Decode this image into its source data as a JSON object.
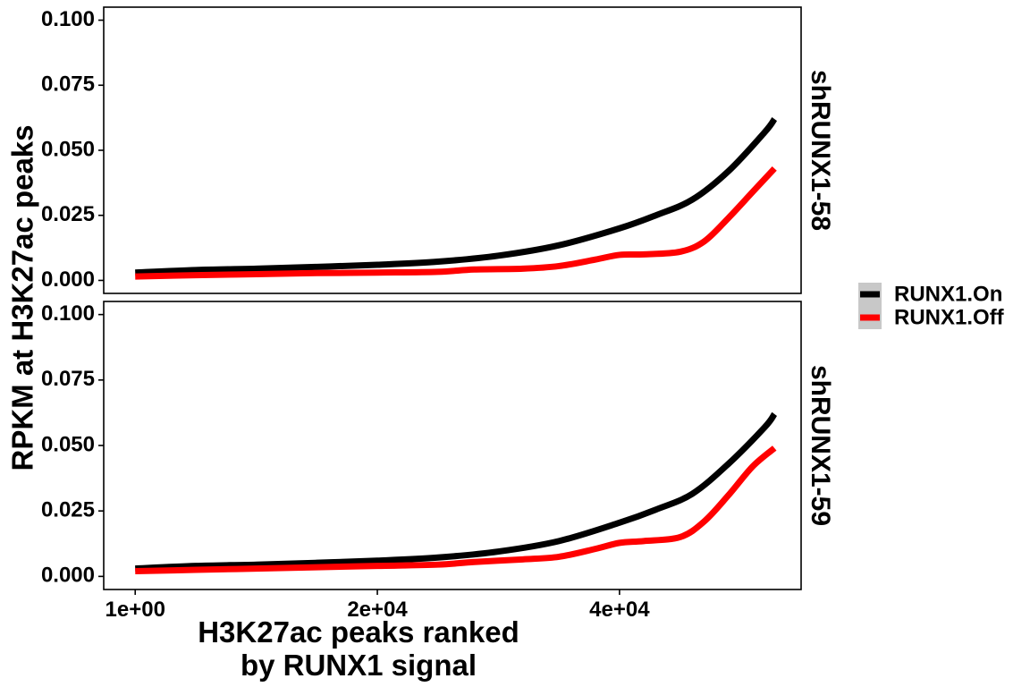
{
  "chart_data": {
    "type": "line",
    "xlabel": "H3K27ac peaks ranked\nby RUNX1 signal",
    "ylabel": "RPKM at H3K27ac peaks",
    "x_ticks": [
      1,
      20000,
      40000
    ],
    "x_tick_labels": [
      "1e+00",
      "2e+04",
      "4e+04"
    ],
    "y_ticks": [
      0,
      0.025,
      0.05,
      0.075,
      0.1
    ],
    "y_tick_labels": [
      "0.000",
      "0.025",
      "0.050",
      "0.075",
      "0.100"
    ],
    "xlim": [
      -2600,
      55000
    ],
    "ylim": [
      -0.005,
      0.105
    ],
    "grid": false,
    "legend": {
      "placement": "right",
      "entries": [
        {
          "label": "RUNX1.On",
          "color": "#000000"
        },
        {
          "label": "RUNX1.Off",
          "color": "#ff0000"
        }
      ]
    },
    "panels": [
      {
        "label": "shRUNX1-58",
        "series": [
          {
            "name": "RUNX1.On",
            "color": "#000000",
            "x": [
              1,
              5000,
              10000,
              15000,
              20000,
              25000,
              30000,
              35000,
              40000,
              43000,
              46000,
              49000,
              52000,
              52800
            ],
            "y": [
              0.003,
              0.004,
              0.0045,
              0.0052,
              0.006,
              0.0072,
              0.0095,
              0.0135,
              0.02,
              0.025,
              0.031,
              0.042,
              0.057,
              0.062
            ]
          },
          {
            "name": "RUNX1.Off",
            "color": "#ff0000",
            "x": [
              1,
              5000,
              10000,
              15000,
              20000,
              25000,
              28000,
              32000,
              35000,
              38000,
              40000,
              42000,
              45000,
              47000,
              49000,
              51000,
              52800
            ],
            "y": [
              0.0015,
              0.002,
              0.0024,
              0.0028,
              0.003,
              0.0033,
              0.0042,
              0.0045,
              0.0055,
              0.008,
              0.0098,
              0.01,
              0.011,
              0.015,
              0.024,
              0.034,
              0.043
            ]
          }
        ]
      },
      {
        "label": "shRUNX1-59",
        "series": [
          {
            "name": "RUNX1.On",
            "color": "#000000",
            "x": [
              1,
              5000,
              10000,
              15000,
              20000,
              25000,
              30000,
              35000,
              40000,
              43000,
              46000,
              49000,
              52000,
              52800
            ],
            "y": [
              0.003,
              0.004,
              0.0045,
              0.0052,
              0.006,
              0.0072,
              0.0095,
              0.0135,
              0.0205,
              0.0255,
              0.0315,
              0.043,
              0.057,
              0.062
            ]
          },
          {
            "name": "RUNX1.Off",
            "color": "#ff0000",
            "x": [
              1,
              5000,
              10000,
              15000,
              20000,
              25000,
              28000,
              32000,
              35000,
              38000,
              40000,
              42000,
              45000,
              47000,
              49000,
              51000,
              52800
            ],
            "y": [
              0.002,
              0.0025,
              0.003,
              0.0035,
              0.004,
              0.0045,
              0.0055,
              0.0065,
              0.0075,
              0.0105,
              0.0128,
              0.0135,
              0.015,
              0.021,
              0.031,
              0.042,
              0.049
            ]
          }
        ]
      }
    ]
  }
}
